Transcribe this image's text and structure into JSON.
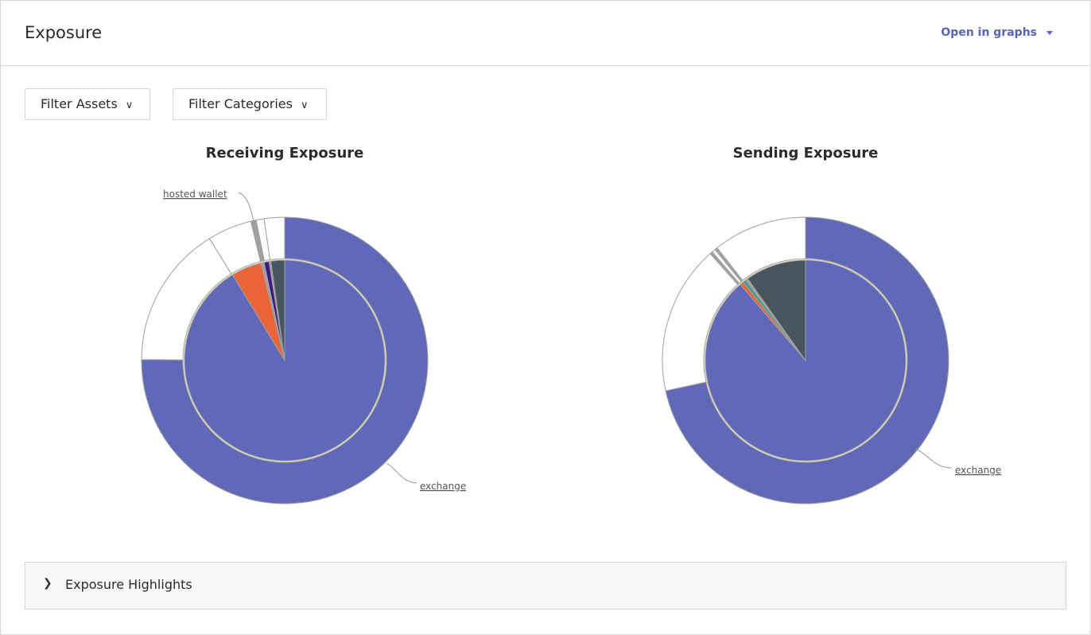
{
  "header": {
    "title": "Exposure",
    "open_in_graphs": "Open in graphs"
  },
  "filters": {
    "assets": "Filter Assets",
    "categories": "Filter Categories"
  },
  "highlights": {
    "label": "Exposure Highlights"
  },
  "colors": {
    "exchange": "#5f69b8",
    "orange": "#ea643a",
    "purple": "#3d1a82",
    "dark": "#47565e",
    "teal": "#3d9a8c",
    "gray": "#a0a0a0",
    "white": "#ffffff"
  },
  "chart_data": [
    {
      "type": "pie",
      "title": "Receiving Exposure",
      "inner": [
        {
          "name": "exchange",
          "value": 91.3,
          "color": "#5f69b8"
        },
        {
          "value": 4.9,
          "color": "#ea643a"
        },
        {
          "value": 0.5,
          "color": "#a0a0a0"
        },
        {
          "value": 0.8,
          "color": "#3d1a82"
        },
        {
          "value": 0.3,
          "color": "#a0a0a0"
        },
        {
          "value": 2.2,
          "color": "#47565e"
        }
      ],
      "outer": [
        {
          "name": "exchange",
          "value": 75.1,
          "color": "#5f69b8"
        },
        {
          "value": 16.1,
          "color": "#ffffff"
        },
        {
          "value": 5.0,
          "color": "#ffffff"
        },
        {
          "name": "hosted wallet",
          "value": 0.6,
          "color": "#a0a0a0"
        },
        {
          "value": 0.9,
          "color": "#ffffff"
        },
        {
          "value": 2.3,
          "color": "#ffffff"
        }
      ],
      "labels": [
        "hosted wallet",
        "exchange"
      ]
    },
    {
      "type": "pie",
      "title": "Sending Exposure",
      "inner": [
        {
          "name": "exchange",
          "value": 88.7,
          "color": "#5f69b8"
        },
        {
          "value": 0.6,
          "color": "#ea643a"
        },
        {
          "value": 0.5,
          "color": "#3d9a8c"
        },
        {
          "value": 0.4,
          "color": "#a0a0a0"
        },
        {
          "value": 9.8,
          "color": "#47565e"
        }
      ],
      "outer": [
        {
          "name": "exchange",
          "value": 71.6,
          "color": "#5f69b8"
        },
        {
          "value": 16.8,
          "color": "#ffffff"
        },
        {
          "value": 0.3,
          "color": "#a0a0a0"
        },
        {
          "value": 0.4,
          "color": "#ffffff"
        },
        {
          "value": 0.3,
          "color": "#a0a0a0"
        },
        {
          "value": 10.6,
          "color": "#ffffff"
        }
      ],
      "labels": [
        "exchange"
      ]
    }
  ]
}
